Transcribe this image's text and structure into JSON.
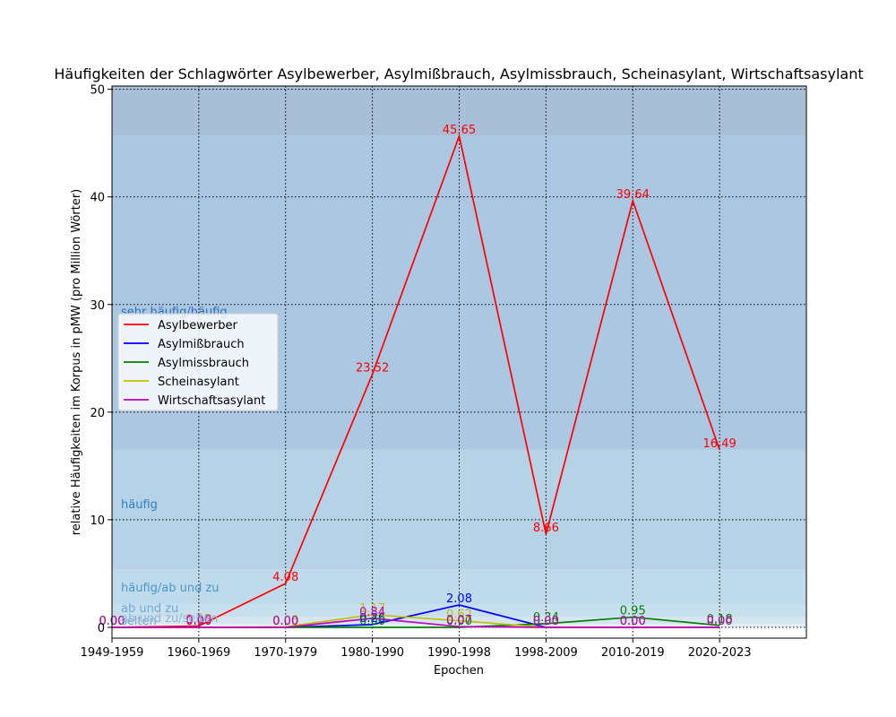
{
  "chart_data": {
    "type": "line",
    "title": "Häufigkeiten der Schlagwörter Asylbewerber, Asylmißbrauch, Asylmissbrauch, Scheinasylant, Wirtschaftsasylant",
    "xlabel": "Epochen",
    "ylabel": "relative Häufigkeiten im Korpus in pMW (pro Million Wörter)",
    "categories": [
      "1949-1959",
      "1960-1969",
      "1970-1979",
      "1980-1990",
      "1990-1998",
      "1998-2009",
      "2010-2019",
      "2020-2023"
    ],
    "ylim": [
      -1,
      50.3
    ],
    "xlim": [
      0,
      8
    ],
    "yticks": [
      0,
      10,
      20,
      30,
      40,
      50
    ],
    "grid": true,
    "legend_position": "center-left",
    "bands": [
      {
        "from": 0,
        "to": 0.33,
        "label": "selten",
        "fill": "#e4eef5",
        "text": "#7aa6c8"
      },
      {
        "from": 0.33,
        "to": 1.0,
        "label": "ab und zu/selten",
        "fill": "#d5e6f1",
        "text": "#8fb6d4"
      },
      {
        "from": 1.0,
        "to": 2.1,
        "label": "ab und zu",
        "fill": "#c8dfee",
        "text": "#6aaad6"
      },
      {
        "from": 2.1,
        "to": 5.4,
        "label": "häufig/ab und zu",
        "fill": "#bedaeb",
        "text": "#4c96cc"
      },
      {
        "from": 5.4,
        "to": 16.5,
        "label": "häufig",
        "fill": "#b5d2e7",
        "text": "#2f7fbf"
      },
      {
        "from": 16.5,
        "to": 45.65,
        "label": "sehr häufig/häufig",
        "fill": "#abc7e1",
        "text": "#2a6fb5"
      },
      {
        "from": 45.65,
        "to": 50.3,
        "label": "",
        "fill": "#a8bfd7",
        "text": "#2a6fb5"
      }
    ],
    "series": [
      {
        "name": "Asylbewerber",
        "color": "#ff0000",
        "values": [
          0.0,
          0.13,
          4.08,
          23.52,
          45.65,
          8.66,
          39.64,
          16.49
        ],
        "labels": [
          "0.00",
          "0.13",
          "4.08",
          "23.52",
          "45.65",
          "8.66",
          "39.64",
          "16.49"
        ]
      },
      {
        "name": "Asylmißbrauch",
        "color": "#0000ff",
        "values": [
          0.0,
          0.0,
          0.0,
          0.26,
          2.08,
          0.0,
          0.0,
          0.0
        ],
        "labels": [
          "0.00",
          "0.00",
          "0.00",
          "0.26",
          "2.08",
          "0.00",
          "0.00",
          "0.00"
        ]
      },
      {
        "name": "Asylmissbrauch",
        "color": "#008000",
        "values": [
          0.0,
          0.0,
          0.0,
          0.0,
          0.0,
          0.34,
          0.95,
          0.18
        ],
        "labels": [
          "0.00",
          "0.00",
          "0.00",
          "0.00",
          "0.00",
          "0.34",
          "0.95",
          "0.18"
        ]
      },
      {
        "name": "Scheinasylant",
        "color": "#bfbf00",
        "values": [
          0.0,
          0.0,
          0.05,
          1.17,
          0.62,
          0.0,
          0.0,
          0.0
        ],
        "labels": [
          "0.00",
          "0.00",
          "0.05",
          "1.17",
          "0.62",
          "0.00",
          "0.00",
          "0.00"
        ]
      },
      {
        "name": "Wirtschaftsasylant",
        "color": "#bf00bf",
        "values": [
          0.0,
          0.0,
          0.0,
          0.84,
          0.07,
          0.0,
          0.0,
          0.0
        ],
        "labels": [
          "0.00",
          "0.00",
          "0.00",
          "0.84",
          "0.07",
          "0.00",
          "0.00",
          "0.00"
        ]
      }
    ]
  }
}
